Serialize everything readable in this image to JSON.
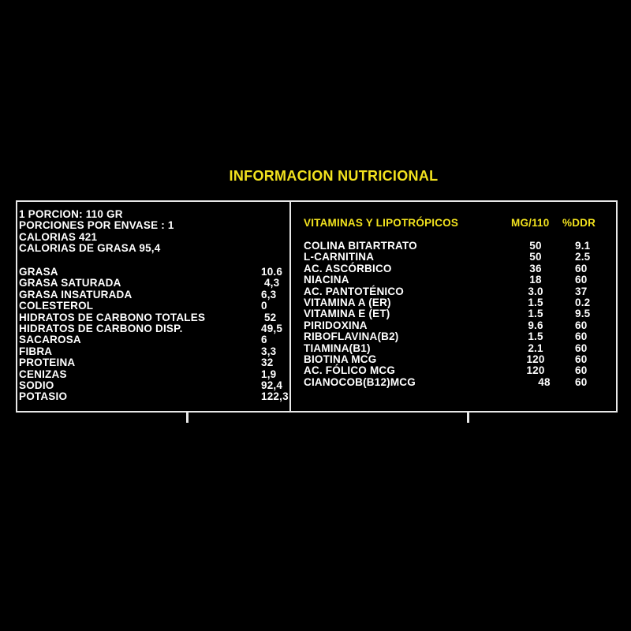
{
  "title": "INFORMACION NUTRICIONAL",
  "colors": {
    "accent": "#f2e21e",
    "text": "#ffffff",
    "background": "#000000",
    "border": "#e8e8e8"
  },
  "serving": [
    "1 PORCION: 110 GR",
    "PORCIONES POR ENVASE : 1",
    "CALORIAS 421",
    "CALORIAS DE GRASA 95,4"
  ],
  "nutrients": [
    {
      "name": "GRASA",
      "value": "10.6"
    },
    {
      "name": "GRASA SATURADA",
      "value": " 4,3"
    },
    {
      "name": "GRASA INSATURADA",
      "value": "6,3"
    },
    {
      "name": "COLESTEROL",
      "value": "0"
    },
    {
      "name": "HIDRATOS DE CARBONO TOTALES",
      "value": " 52"
    },
    {
      "name": "HIDRATOS DE CARBONO DISP.",
      "value": "49,5"
    },
    {
      "name": "SACAROSA",
      "value": "6"
    },
    {
      "name": "FIBRA",
      "value": "3,3"
    },
    {
      "name": "PROTEINA",
      "value": "32"
    },
    {
      "name": "CENIZAS",
      "value": "1,9"
    },
    {
      "name": "SODIO",
      "value": "92,4"
    },
    {
      "name": "POTASIO",
      "value": "122,3"
    }
  ],
  "vitamins": {
    "header": {
      "name": "VITAMINAS Y LIPOTRÓPICOS",
      "mg": "MG/110",
      "ddr": "%DDR"
    },
    "rows": [
      {
        "name": "COLINA BITARTRATO",
        "mg": "50",
        "ddr": "9.1"
      },
      {
        "name": "L-CARNITINA",
        "mg": "50",
        "ddr": "2.5"
      },
      {
        "name": "AC. ASCÓRBICO",
        "mg": "36",
        "ddr": "60"
      },
      {
        "name": "NIACINA",
        "mg": "18",
        "ddr": "60"
      },
      {
        "name": "AC. PANTOTÉNICO",
        "mg": "3.0",
        "ddr": "37"
      },
      {
        "name": "VITAMINA A (ER)",
        "mg": "1.5",
        "ddr": "0.2"
      },
      {
        "name": "VITAMINA E (ET)",
        "mg": "1.5",
        "ddr": "9.5"
      },
      {
        "name": "PIRIDOXINA",
        "mg": "9.6",
        "ddr": "60"
      },
      {
        "name": "RIBOFLAVINA(B2)",
        "mg": "1.5",
        "ddr": "60"
      },
      {
        "name": "TIAMINA(B1)",
        "mg": "2.1",
        "ddr": "60"
      },
      {
        "name": "BIOTINA MCG",
        "mg": "120",
        "ddr": "60"
      },
      {
        "name": "AC. FÓLICO MCG",
        "mg": "120",
        "ddr": "60"
      },
      {
        "name": "CIANOCOB(B12)MCG",
        "mg": "48",
        "ddr": "60"
      }
    ]
  }
}
